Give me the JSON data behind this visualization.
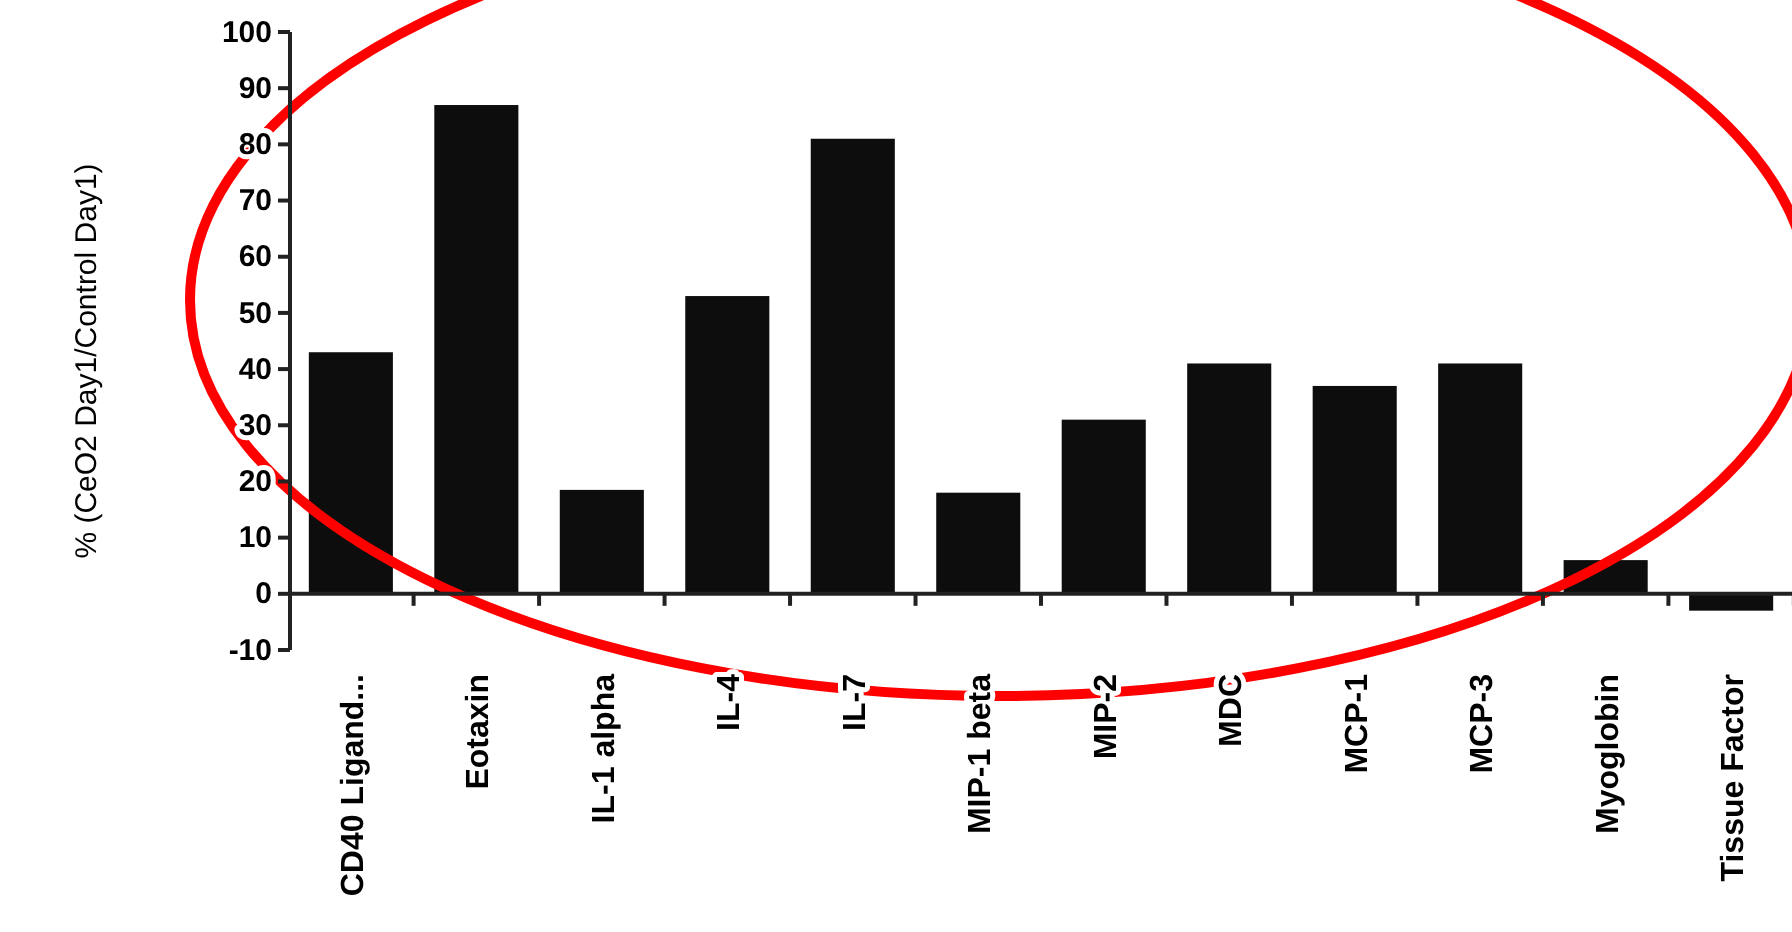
{
  "chart_data": {
    "type": "bar",
    "ylabel": "% (CeO2 Day1/Control Day1)",
    "categories": [
      "CD40 Ligand...",
      "Eotaxin",
      "IL-1 alpha",
      "IL-4",
      "IL-7",
      "MIP-1 beta",
      "MIP-2",
      "MDC",
      "MCP-1",
      "MCP-3",
      "Myoglobin",
      "Tissue Factor"
    ],
    "values": [
      43,
      87,
      18.5,
      53,
      81,
      18,
      31,
      41,
      37,
      41,
      6,
      -3
    ],
    "color": "#0d0d0d",
    "ylim": [
      -10,
      100
    ],
    "yticks": [
      -10,
      0,
      10,
      20,
      30,
      40,
      50,
      60,
      70,
      80,
      90,
      100
    ],
    "grid": false
  }
}
